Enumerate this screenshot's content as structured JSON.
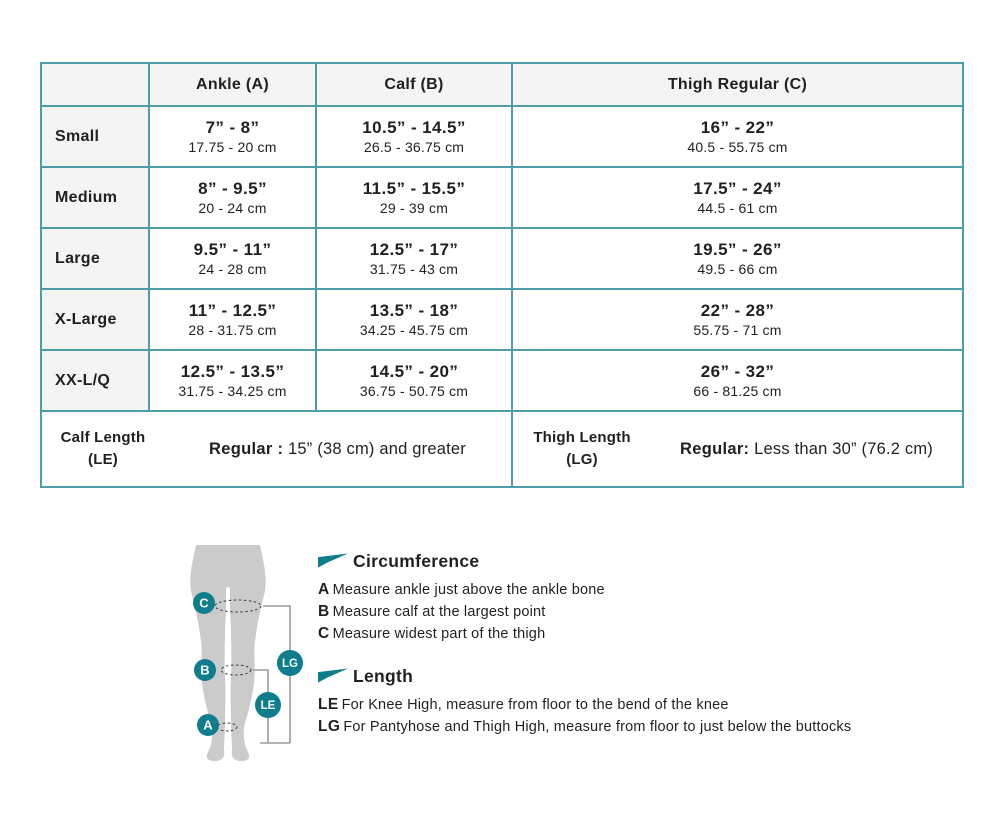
{
  "colors": {
    "border-teal": "#4d9da9",
    "teal": "#0f7d8c",
    "cell-gray": "#f4f4f4",
    "leg-gray": "#cbcbcb",
    "bracket": "#9b9b9b"
  },
  "table": {
    "columns": [
      "",
      "Ankle (A)",
      "Calf (B)",
      "Thigh Regular (C)"
    ],
    "rows": [
      {
        "label": "Small",
        "cells": [
          {
            "in": "7” - 8”",
            "cm": "17.75 - 20 cm"
          },
          {
            "in": "10.5” - 14.5”",
            "cm": "26.5 - 36.75 cm"
          },
          {
            "in": "16” - 22”",
            "cm": "40.5 - 55.75 cm"
          }
        ]
      },
      {
        "label": "Medium",
        "cells": [
          {
            "in": "8” - 9.5”",
            "cm": "20 - 24 cm"
          },
          {
            "in": "11.5” - 15.5”",
            "cm": "29 - 39 cm"
          },
          {
            "in": "17.5” - 24”",
            "cm": "44.5 - 61 cm"
          }
        ]
      },
      {
        "label": "Large",
        "cells": [
          {
            "in": "9.5” - 11”",
            "cm": "24 - 28 cm"
          },
          {
            "in": "12.5” - 17”",
            "cm": "31.75 - 43 cm"
          },
          {
            "in": "19.5” - 26”",
            "cm": "49.5 - 66 cm"
          }
        ]
      },
      {
        "label": "X-Large",
        "cells": [
          {
            "in": "11” - 12.5”",
            "cm": "28 - 31.75 cm"
          },
          {
            "in": "13.5” - 18”",
            "cm": "34.25 - 45.75 cm"
          },
          {
            "in": "22” - 28”",
            "cm": "55.75 - 71 cm"
          }
        ]
      },
      {
        "label": "XX-L/Q",
        "cells": [
          {
            "in": "12.5” - 13.5”",
            "cm": "31.75 - 34.25 cm"
          },
          {
            "in": "14.5” - 20”",
            "cm": "36.75 - 50.75 cm"
          },
          {
            "in": "26” - 32”",
            "cm": "66 - 81.25 cm"
          }
        ]
      }
    ],
    "footer": [
      {
        "label_line1": "Calf Length",
        "label_line2": "(LE)",
        "value_bold": "Regular :",
        "value_rest": " 15” (38 cm) and greater"
      },
      {
        "label_line1": "Thigh Length",
        "label_line2": "(LG)",
        "value_bold": "Regular:",
        "value_rest": " Less than 30” (76.2 cm)"
      }
    ]
  },
  "legend": {
    "circumference": {
      "title": "Circumference",
      "items": [
        {
          "key": "A",
          "text": "Measure ankle just above the ankle bone"
        },
        {
          "key": "B",
          "text": "Measure calf at the largest point"
        },
        {
          "key": "C",
          "text": "Measure widest part of the thigh"
        }
      ]
    },
    "length": {
      "title": "Length",
      "items": [
        {
          "key": "LE",
          "text": "For Knee High, measure from floor to the bend of the knee"
        },
        {
          "key": "LG",
          "text": "For Pantyhose and Thigh High, measure from floor to just below the buttocks"
        }
      ]
    }
  },
  "diagram": {
    "badges": {
      "a": "A",
      "b": "B",
      "c": "C",
      "le": "LE",
      "lg": "LG"
    }
  }
}
